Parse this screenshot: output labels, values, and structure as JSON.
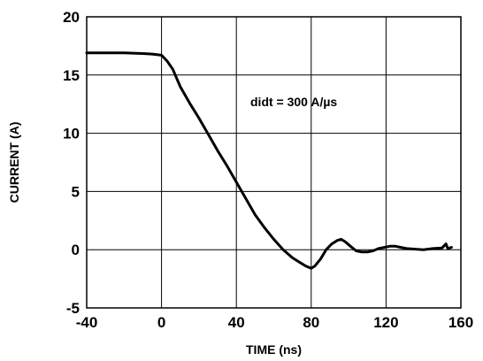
{
  "chart_data": {
    "type": "line",
    "xlabel": "TIME (ns)",
    "ylabel": "CURRENT (A)",
    "xlim": [
      -40,
      160
    ],
    "ylim": [
      -5,
      20
    ],
    "xticks": [
      -40,
      0,
      40,
      80,
      120,
      160
    ],
    "yticks": [
      -5,
      0,
      5,
      10,
      15,
      20
    ],
    "grid": true,
    "annotation": {
      "text": "didt = 300 A/µs"
    },
    "series": [
      {
        "color": "#000000",
        "x": [
          -40,
          -30,
          -20,
          -10,
          -5,
          0,
          3,
          6,
          10,
          15,
          20,
          25,
          30,
          35,
          40,
          45,
          50,
          55,
          60,
          65,
          70,
          74,
          77,
          80,
          82,
          85,
          88,
          91,
          94,
          96,
          98,
          101,
          104,
          107,
          110,
          113,
          116,
          119,
          122,
          125,
          128,
          131,
          135,
          140,
          145,
          150,
          152,
          153,
          155
        ],
        "y": [
          16.9,
          16.9,
          16.9,
          16.85,
          16.8,
          16.7,
          16.2,
          15.5,
          14.0,
          12.6,
          11.3,
          9.9,
          8.5,
          7.2,
          5.8,
          4.4,
          3.0,
          1.9,
          0.9,
          0.0,
          -0.7,
          -1.1,
          -1.4,
          -1.6,
          -1.4,
          -0.8,
          0.0,
          0.5,
          0.8,
          0.9,
          0.7,
          0.3,
          -0.1,
          -0.2,
          -0.2,
          -0.1,
          0.1,
          0.2,
          0.3,
          0.3,
          0.2,
          0.1,
          0.05,
          0.0,
          0.1,
          0.15,
          0.5,
          0.1,
          0.2
        ]
      }
    ]
  }
}
